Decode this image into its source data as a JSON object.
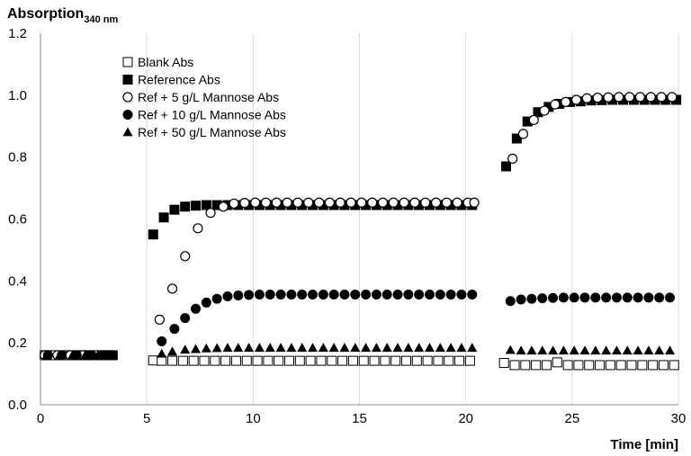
{
  "chart_data": {
    "type": "scatter",
    "ylabel_main": "Absorption",
    "ylabel_sub": "340 nm",
    "xlabel": "Time [min]",
    "xlim": [
      0,
      30
    ],
    "ylim": [
      0,
      1.2
    ],
    "xticks": [
      0,
      5,
      10,
      15,
      20,
      25,
      30
    ],
    "yticks": [
      0.0,
      0.2,
      0.4,
      0.6,
      0.8,
      1.0,
      1.2
    ],
    "ytick_labels": [
      "0.0",
      "0.2",
      "0.4",
      "0.6",
      "0.8",
      "1.0",
      "1.2"
    ],
    "grid": "vertical",
    "legend_position": "top-left",
    "series": [
      {
        "name": "Blank Abs",
        "marker": "square-open",
        "x": [
          0.2,
          0.5,
          1.1,
          1.4,
          2.0,
          2.3,
          2.9,
          3.2,
          5.3,
          5.7,
          6.2,
          6.7,
          7.2,
          7.7,
          8.2,
          8.7,
          9.2,
          9.7,
          10.2,
          10.7,
          11.2,
          11.7,
          12.2,
          12.7,
          13.2,
          13.7,
          14.2,
          14.7,
          15.2,
          15.7,
          16.2,
          16.7,
          17.2,
          17.7,
          18.2,
          18.7,
          19.2,
          19.7,
          20.2,
          21.8,
          22.3,
          22.8,
          23.3,
          23.8,
          24.3,
          24.8,
          25.3,
          25.8,
          26.3,
          26.8,
          27.3,
          27.8,
          28.3,
          28.8,
          29.3,
          29.8
        ],
        "y": [
          0.16,
          0.16,
          0.16,
          0.16,
          0.16,
          0.16,
          0.16,
          0.16,
          0.143,
          0.142,
          0.142,
          0.142,
          0.142,
          0.142,
          0.142,
          0.142,
          0.142,
          0.142,
          0.142,
          0.142,
          0.142,
          0.142,
          0.142,
          0.142,
          0.142,
          0.142,
          0.142,
          0.142,
          0.142,
          0.142,
          0.142,
          0.142,
          0.142,
          0.142,
          0.142,
          0.142,
          0.142,
          0.142,
          0.142,
          0.135,
          0.128,
          0.128,
          0.128,
          0.128,
          0.137,
          0.128,
          0.128,
          0.128,
          0.128,
          0.128,
          0.128,
          0.128,
          0.128,
          0.128,
          0.128,
          0.128
        ]
      },
      {
        "name": "Reference Abs",
        "marker": "square-filled",
        "x": [
          0.3,
          0.9,
          1.6,
          2.2,
          2.8,
          3.4,
          5.3,
          5.8,
          6.3,
          6.8,
          7.3,
          7.8,
          8.3,
          8.8,
          9.3,
          9.8,
          10.3,
          10.8,
          11.3,
          11.8,
          12.3,
          12.8,
          13.3,
          13.8,
          14.3,
          14.8,
          15.3,
          15.8,
          16.3,
          16.8,
          17.3,
          17.8,
          18.3,
          18.8,
          19.3,
          19.8,
          20.3,
          21.9,
          22.4,
          22.9,
          23.4,
          23.9,
          24.4,
          24.9,
          25.4,
          25.9,
          26.4,
          26.9,
          27.4,
          27.9,
          28.4,
          28.9,
          29.4,
          29.9
        ],
        "y": [
          0.16,
          0.16,
          0.16,
          0.16,
          0.16,
          0.16,
          0.55,
          0.605,
          0.63,
          0.64,
          0.643,
          0.645,
          0.645,
          0.645,
          0.645,
          0.645,
          0.645,
          0.645,
          0.645,
          0.645,
          0.645,
          0.645,
          0.645,
          0.645,
          0.645,
          0.645,
          0.645,
          0.645,
          0.645,
          0.645,
          0.645,
          0.645,
          0.645,
          0.645,
          0.645,
          0.645,
          0.645,
          0.77,
          0.86,
          0.915,
          0.945,
          0.962,
          0.972,
          0.978,
          0.98,
          0.983,
          0.984,
          0.985,
          0.985,
          0.985,
          0.985,
          0.985,
          0.985,
          0.985
        ]
      },
      {
        "name": "Ref + 5 g/L Mannose Abs",
        "marker": "circle-open",
        "x": [
          0.2,
          0.8,
          1.4,
          2.0,
          2.6,
          3.2,
          5.6,
          6.2,
          6.8,
          7.4,
          8.0,
          8.6,
          9.1,
          9.6,
          10.1,
          10.6,
          11.1,
          11.6,
          12.1,
          12.6,
          13.1,
          13.6,
          14.1,
          14.6,
          15.1,
          15.6,
          16.1,
          16.6,
          17.1,
          17.6,
          18.1,
          18.6,
          19.1,
          19.6,
          20.1,
          20.4,
          22.2,
          22.7,
          23.2,
          23.7,
          24.2,
          24.7,
          25.2,
          25.7,
          26.2,
          26.7,
          27.2,
          27.7,
          28.2,
          28.7,
          29.2,
          29.7
        ],
        "y": [
          0.16,
          0.16,
          0.16,
          0.16,
          0.16,
          0.16,
          0.275,
          0.375,
          0.48,
          0.57,
          0.62,
          0.64,
          0.65,
          0.652,
          0.653,
          0.653,
          0.653,
          0.653,
          0.653,
          0.653,
          0.653,
          0.653,
          0.653,
          0.653,
          0.653,
          0.653,
          0.653,
          0.653,
          0.653,
          0.653,
          0.653,
          0.653,
          0.653,
          0.653,
          0.653,
          0.653,
          0.795,
          0.875,
          0.92,
          0.95,
          0.97,
          0.978,
          0.985,
          0.99,
          0.992,
          0.993,
          0.994,
          0.994,
          0.994,
          0.994,
          0.994,
          0.994
        ]
      },
      {
        "name": "Ref + 10 g/L Mannose Abs",
        "marker": "circle-filled",
        "x": [
          0.35,
          1.0,
          1.7,
          2.4,
          3.1,
          5.7,
          6.3,
          6.8,
          7.3,
          7.8,
          8.3,
          8.8,
          9.3,
          9.8,
          10.3,
          10.8,
          11.3,
          11.8,
          12.3,
          12.8,
          13.3,
          13.8,
          14.3,
          14.8,
          15.3,
          15.8,
          16.3,
          16.8,
          17.3,
          17.8,
          18.3,
          18.8,
          19.3,
          19.8,
          20.3,
          22.1,
          22.6,
          23.1,
          23.6,
          24.1,
          24.6,
          25.1,
          25.6,
          26.1,
          26.6,
          27.1,
          27.6,
          28.1,
          28.6,
          29.1,
          29.6
        ],
        "y": [
          0.16,
          0.16,
          0.16,
          0.16,
          0.16,
          0.205,
          0.245,
          0.28,
          0.31,
          0.33,
          0.342,
          0.35,
          0.353,
          0.355,
          0.356,
          0.356,
          0.356,
          0.356,
          0.356,
          0.356,
          0.356,
          0.356,
          0.356,
          0.356,
          0.356,
          0.356,
          0.356,
          0.356,
          0.356,
          0.356,
          0.356,
          0.356,
          0.356,
          0.356,
          0.356,
          0.335,
          0.34,
          0.342,
          0.344,
          0.345,
          0.346,
          0.346,
          0.346,
          0.346,
          0.346,
          0.346,
          0.346,
          0.346,
          0.346,
          0.346,
          0.346
        ]
      },
      {
        "name": "Ref + 50 g/L Mannose Abs",
        "marker": "triangle-filled",
        "x": [
          0.3,
          0.9,
          1.5,
          2.1,
          2.7,
          3.3,
          5.7,
          6.2,
          6.8,
          7.3,
          7.8,
          8.3,
          8.8,
          9.3,
          9.8,
          10.3,
          10.8,
          11.3,
          11.8,
          12.3,
          12.8,
          13.3,
          13.8,
          14.3,
          14.8,
          15.3,
          15.8,
          16.3,
          16.8,
          17.3,
          17.8,
          18.3,
          18.8,
          19.3,
          19.8,
          20.3,
          22.1,
          22.6,
          23.1,
          23.6,
          24.1,
          24.6,
          25.1,
          25.6,
          26.1,
          26.6,
          27.1,
          27.6,
          28.1,
          28.6,
          29.1,
          29.6
        ],
        "y": [
          0.16,
          0.16,
          0.16,
          0.16,
          0.16,
          0.16,
          0.165,
          0.172,
          0.178,
          0.18,
          0.182,
          0.183,
          0.184,
          0.184,
          0.184,
          0.184,
          0.184,
          0.184,
          0.184,
          0.184,
          0.184,
          0.184,
          0.184,
          0.184,
          0.184,
          0.184,
          0.184,
          0.184,
          0.184,
          0.184,
          0.184,
          0.184,
          0.184,
          0.184,
          0.184,
          0.184,
          0.177,
          0.175,
          0.175,
          0.175,
          0.175,
          0.175,
          0.175,
          0.175,
          0.175,
          0.175,
          0.175,
          0.175,
          0.175,
          0.175,
          0.175,
          0.175
        ]
      }
    ]
  }
}
